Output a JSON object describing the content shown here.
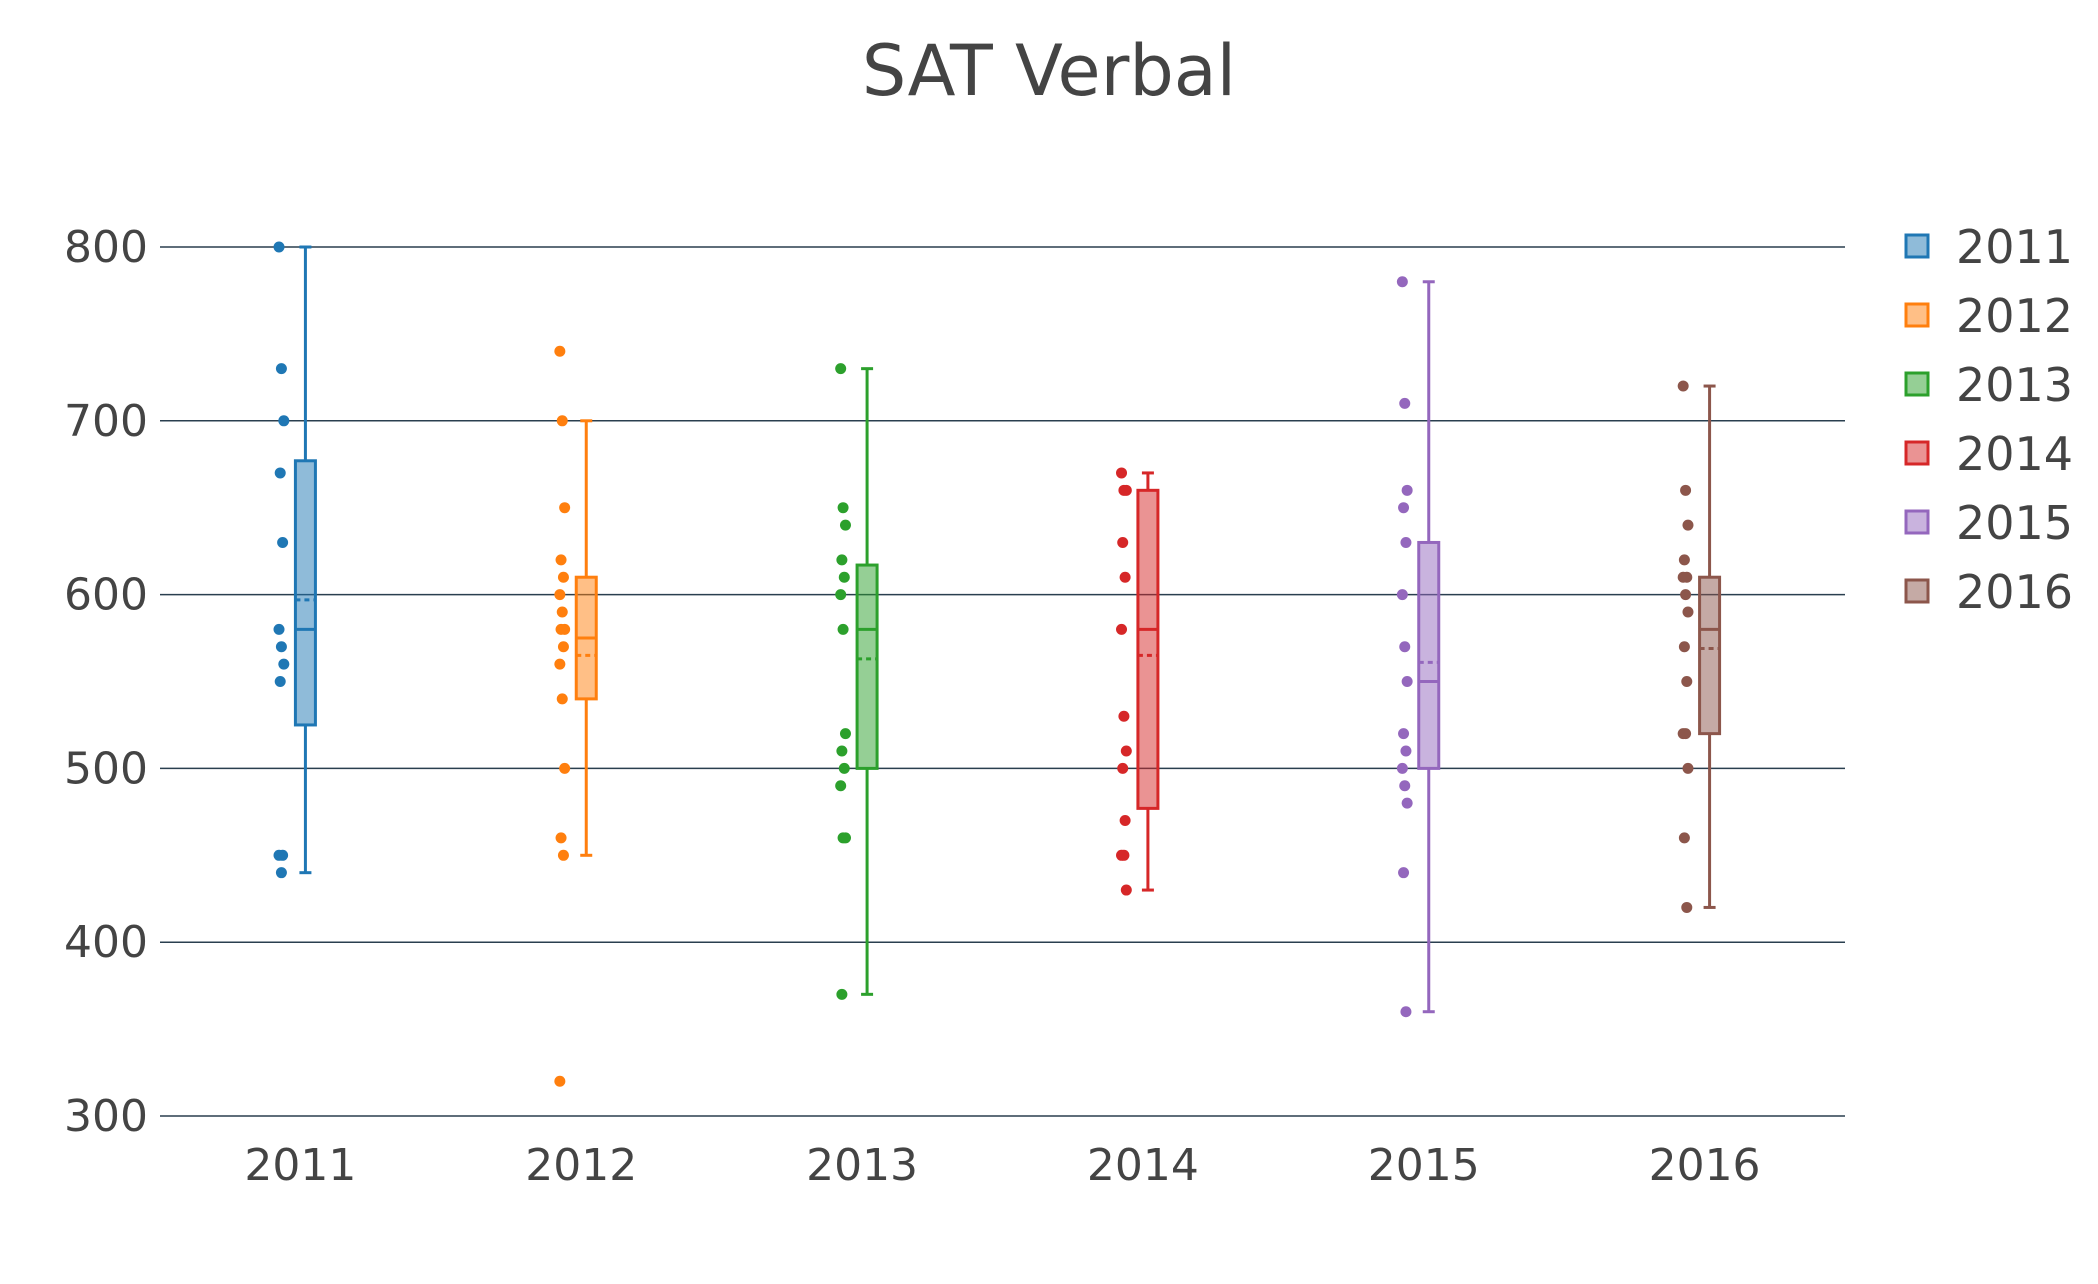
{
  "chart_data": {
    "type": "box",
    "title": "SAT Verbal",
    "xlabel": "",
    "ylabel": "",
    "ylim": [
      300,
      800
    ],
    "yticks": [
      300,
      400,
      500,
      600,
      700,
      800
    ],
    "categories": [
      "2011",
      "2012",
      "2013",
      "2014",
      "2015",
      "2016"
    ],
    "grid": true,
    "legend_position": "top-right",
    "series": [
      {
        "name": "2011",
        "color": "#1f77b4",
        "points": [
          800,
          730,
          700,
          670,
          630,
          580,
          570,
          560,
          550,
          450,
          450,
          440
        ],
        "q1": 525,
        "median": 580,
        "q3": 677,
        "mean": 597,
        "whisker_low": 440,
        "whisker_high": 800
      },
      {
        "name": "2012",
        "color": "#ff7f0e",
        "points": [
          740,
          700,
          650,
          620,
          610,
          600,
          590,
          580,
          580,
          570,
          560,
          540,
          500,
          460,
          450,
          320
        ],
        "q1": 540,
        "median": 575,
        "q3": 610,
        "mean": 565,
        "whisker_low": 450,
        "whisker_high": 700
      },
      {
        "name": "2013",
        "color": "#2ca02c",
        "points": [
          730,
          650,
          640,
          620,
          610,
          600,
          580,
          520,
          510,
          500,
          490,
          460,
          460,
          370
        ],
        "q1": 500,
        "median": 580,
        "q3": 617,
        "mean": 563,
        "whisker_low": 370,
        "whisker_high": 730
      },
      {
        "name": "2014",
        "color": "#d62728",
        "points": [
          670,
          660,
          660,
          630,
          610,
          580,
          530,
          510,
          500,
          470,
          450,
          450,
          430
        ],
        "q1": 477,
        "median": 580,
        "q3": 660,
        "mean": 565,
        "whisker_low": 430,
        "whisker_high": 670
      },
      {
        "name": "2015",
        "color": "#9467bd",
        "points": [
          780,
          710,
          660,
          650,
          630,
          600,
          570,
          550,
          520,
          510,
          500,
          490,
          480,
          440,
          360
        ],
        "q1": 500,
        "median": 550,
        "q3": 630,
        "mean": 561,
        "whisker_low": 360,
        "whisker_high": 780
      },
      {
        "name": "2016",
        "color": "#8c564b",
        "points": [
          720,
          660,
          640,
          620,
          610,
          610,
          600,
          590,
          570,
          550,
          520,
          520,
          500,
          460,
          420
        ],
        "q1": 520,
        "median": 580,
        "q3": 610,
        "mean": 569,
        "whisker_low": 420,
        "whisker_high": 720
      }
    ]
  },
  "colors": {
    "grid": "#2a3f4f",
    "text": "#444444"
  }
}
